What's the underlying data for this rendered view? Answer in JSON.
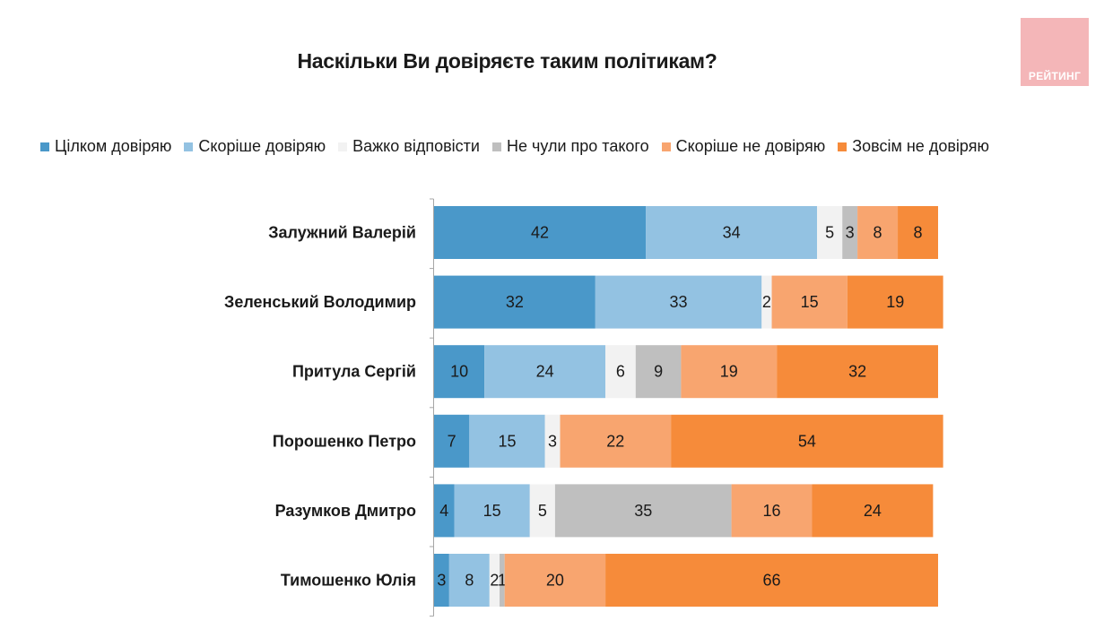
{
  "brand": {
    "logo_text": "РЕЙТИНГ",
    "logo_color": "#f4b6b8"
  },
  "chart_data": {
    "type": "bar",
    "orientation": "horizontal",
    "stacked": true,
    "title": "Наскільки Ви довіряєте таким політикам?",
    "legend_position": "top",
    "xlim": [
      0,
      100
    ],
    "categories": [
      "Залужний Валерій",
      "Зеленський Володимир",
      "Притула Сергій",
      "Порошенко Петро",
      "Разумков Дмитро",
      "Тимошенко Юлія"
    ],
    "series": [
      {
        "name": "Цілком довіряю",
        "color": "#4a98c9",
        "values": [
          42,
          32,
          10,
          7,
          4,
          3
        ]
      },
      {
        "name": "Скоріше довіряю",
        "color": "#93c2e2",
        "values": [
          34,
          33,
          24,
          15,
          15,
          8
        ]
      },
      {
        "name": "Важко відповісти",
        "color": "#f2f2f2",
        "values": [
          5,
          2,
          6,
          3,
          5,
          2
        ]
      },
      {
        "name": "Не чули про такого",
        "color": "#bfbfbf",
        "values": [
          3,
          0,
          9,
          0,
          35,
          1
        ]
      },
      {
        "name": "Скоріше не довіряю",
        "color": "#f8a56f",
        "values": [
          8,
          15,
          19,
          22,
          16,
          20
        ]
      },
      {
        "name": "Зовсім не довіряю",
        "color": "#f68b3a",
        "values": [
          8,
          19,
          32,
          54,
          24,
          66
        ]
      }
    ]
  }
}
